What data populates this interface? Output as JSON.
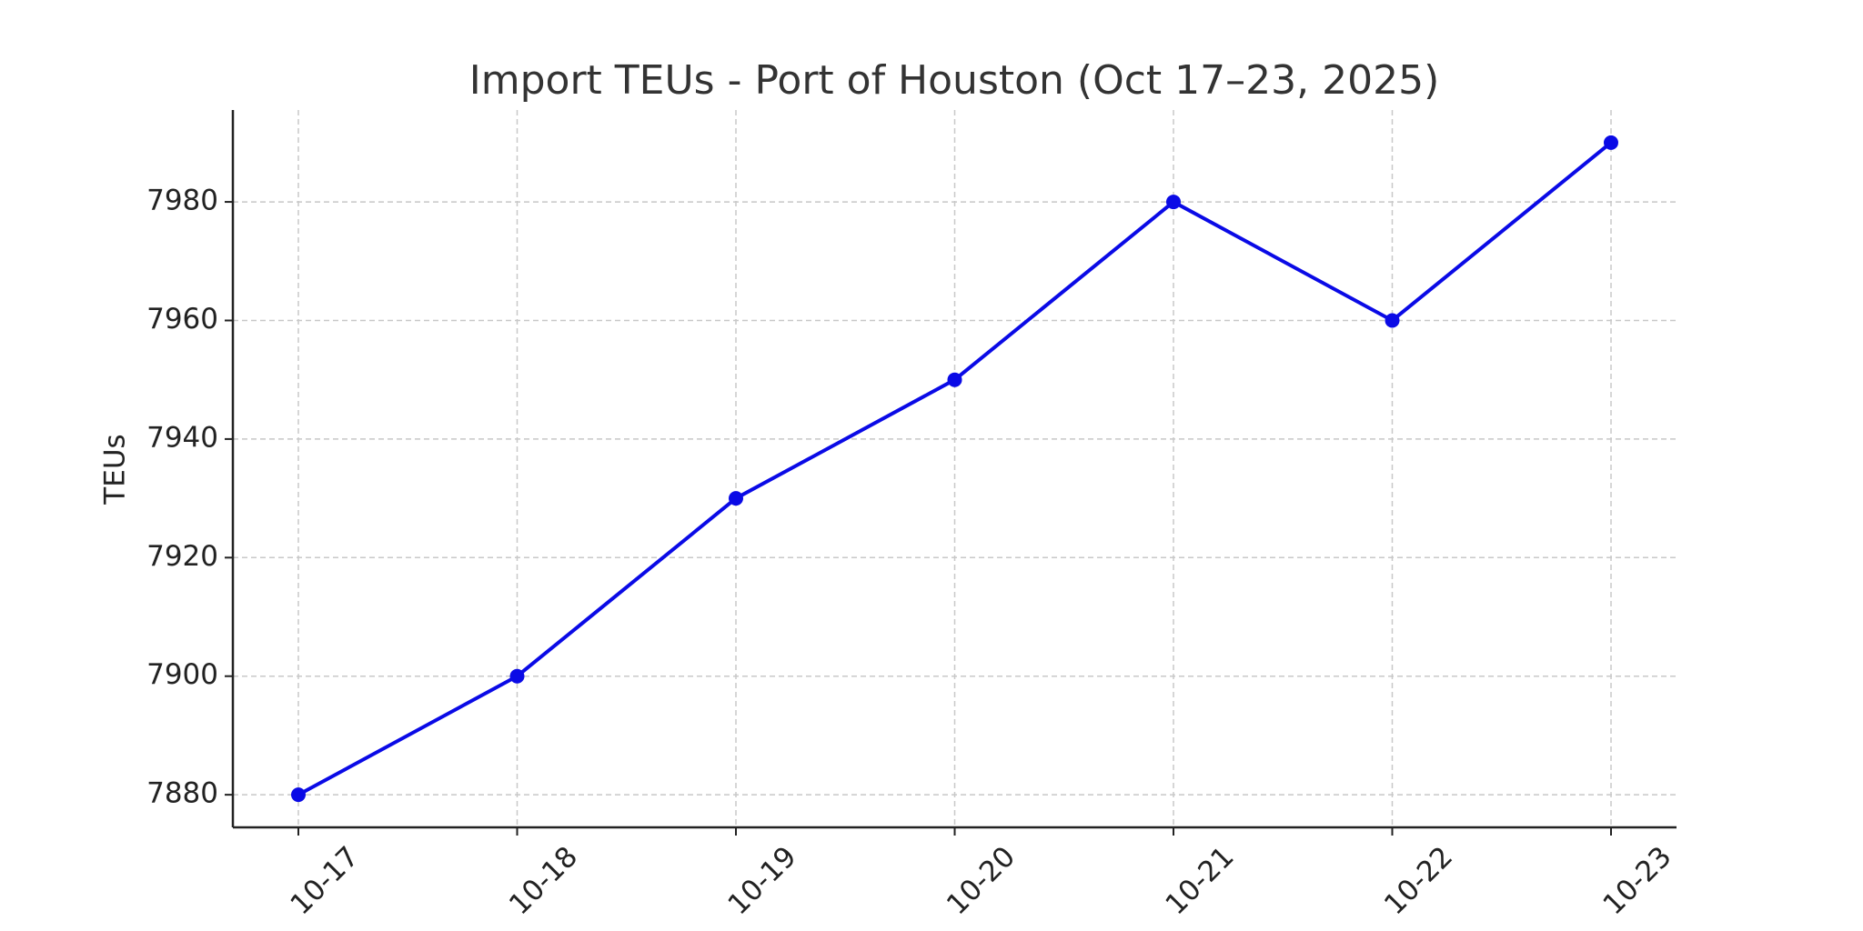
{
  "chart_data": {
    "type": "line",
    "title": "Import TEUs - Port of Houston (Oct 17–23, 2025)",
    "y_label": "TEUs",
    "categories": [
      "10-17",
      "10-18",
      "10-19",
      "10-20",
      "10-21",
      "10-22",
      "10-23"
    ],
    "values": [
      7880,
      7900,
      7930,
      7950,
      7980,
      7960,
      7990
    ],
    "color": "#0a0ae6",
    "ylim": [
      7874.5,
      7995.5
    ],
    "yticks": [
      7880,
      7900,
      7920,
      7940,
      7960,
      7980
    ],
    "grid": true
  }
}
